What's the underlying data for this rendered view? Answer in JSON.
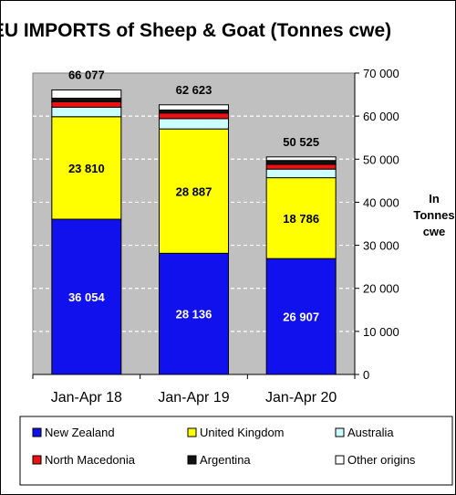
{
  "chart_data": {
    "type": "bar",
    "stacked": true,
    "title": "EU IMPORTS of Sheep & Goat (Tonnes cwe)",
    "ylabel_lines": [
      "In",
      "Tonnes",
      "cwe"
    ],
    "y_axis_side": "right",
    "ylim": [
      0,
      70000
    ],
    "yticks": [
      0,
      10000,
      20000,
      30000,
      40000,
      50000,
      60000,
      70000
    ],
    "ytick_labels": [
      "0",
      "10 000",
      "20 000",
      "30 000",
      "40 000",
      "50 000",
      "60 000",
      "70 000"
    ],
    "grid": true,
    "legend_position": "bottom",
    "categories": [
      "Jan-Apr 18",
      "Jan-Apr 19",
      "Jan-Apr 20"
    ],
    "totals": [
      66077,
      62623,
      50525
    ],
    "total_labels": [
      "66 077",
      "62 623",
      "50 525"
    ],
    "series": [
      {
        "name": "New Zealand",
        "color": "#1111ee",
        "values": [
          36054,
          28136,
          26907
        ],
        "labels": [
          "36 054",
          "28 136",
          "26 907"
        ],
        "label_color": "#ffffff"
      },
      {
        "name": "United Kingdom",
        "color": "#ffff00",
        "values": [
          23810,
          28887,
          18786
        ],
        "labels": [
          "23 810",
          "28 887",
          "18 786"
        ],
        "label_color": "#000000"
      },
      {
        "name": "Australia",
        "color": "#ccffff",
        "values": [
          2200,
          2400,
          2000
        ],
        "labels": [
          "",
          "",
          ""
        ],
        "label_color": "#000000"
      },
      {
        "name": "North Macedonia",
        "color": "#ee1111",
        "values": [
          1300,
          1300,
          1100
        ],
        "labels": [
          "",
          "",
          ""
        ],
        "label_color": "#000000"
      },
      {
        "name": "Argentina",
        "color": "#111111",
        "values": [
          800,
          700,
          900
        ],
        "labels": [
          "",
          "",
          ""
        ],
        "label_color": "#000000"
      },
      {
        "name": "Other origins",
        "color": "#ffffff",
        "values": [
          1913,
          1200,
          832
        ],
        "labels": [
          "",
          "",
          ""
        ],
        "label_color": "#000000"
      }
    ]
  }
}
